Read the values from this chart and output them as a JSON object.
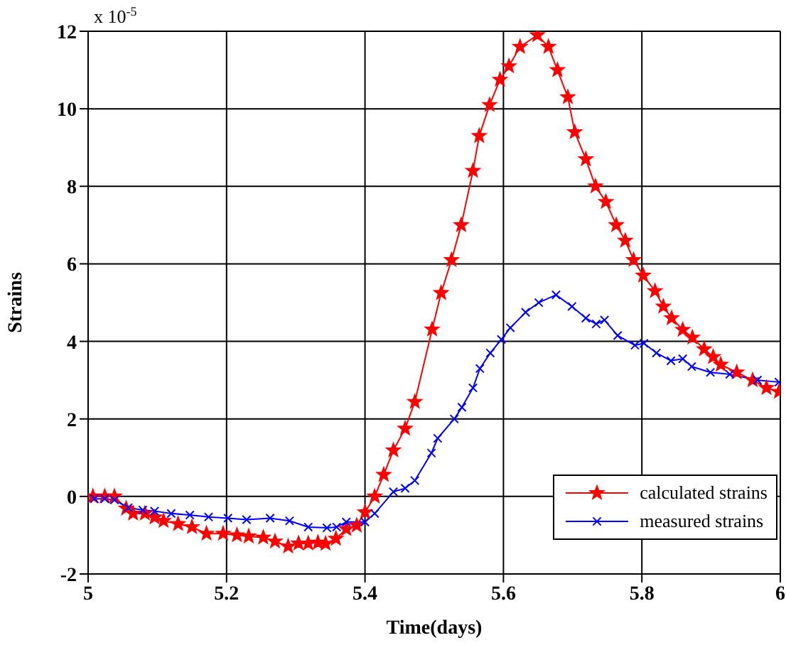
{
  "chart_data": {
    "type": "line",
    "xlabel": "Time(days)",
    "ylabel": "Strains",
    "annotations": [
      "x 10$^{-5}$"
    ],
    "xlim": [
      5,
      6
    ],
    "xticks": [
      5,
      5.2,
      5.4,
      5.6,
      5.8,
      6
    ],
    "ylim": [
      -2,
      12
    ],
    "yticks": [
      -2,
      0,
      2,
      4,
      6,
      8,
      10,
      12
    ],
    "grid": true,
    "legend": "bottom right",
    "line_style": "solid",
    "series": [
      {
        "name": "calculated strains",
        "color": "#ff0000",
        "marker": "star",
        "x": [
          5.007,
          5.024,
          5.038,
          5.055,
          5.065,
          5.082,
          5.096,
          5.109,
          5.13,
          5.15,
          5.171,
          5.195,
          5.215,
          5.232,
          5.253,
          5.27,
          5.289,
          5.304,
          5.318,
          5.332,
          5.343,
          5.358,
          5.373,
          5.388,
          5.4,
          5.414,
          5.427,
          5.441,
          5.458,
          5.472,
          5.497,
          5.51,
          5.525,
          5.539,
          5.556,
          5.565,
          5.58,
          5.595,
          5.608,
          5.624,
          5.649,
          5.665,
          5.678,
          5.693,
          5.703,
          5.719,
          5.733,
          5.748,
          5.763,
          5.776,
          5.788,
          5.802,
          5.819,
          5.831,
          5.843,
          5.859,
          5.873,
          5.89,
          5.903,
          5.914,
          5.937,
          5.96,
          5.98,
          5.998
        ],
        "values": [
          0,
          0,
          0,
          -0.31,
          -0.44,
          -0.44,
          -0.54,
          -0.63,
          -0.71,
          -0.79,
          -0.96,
          -0.96,
          -1.0,
          -1.03,
          -1.06,
          -1.16,
          -1.29,
          -1.21,
          -1.21,
          -1.19,
          -1.22,
          -1.09,
          -0.84,
          -0.75,
          -0.41,
          0,
          0.56,
          1.19,
          1.75,
          2.44,
          4.31,
          5.25,
          6.1,
          7.0,
          8.4,
          9.3,
          10.1,
          10.75,
          11.1,
          11.6,
          11.9,
          11.6,
          11.0,
          10.3,
          9.4,
          8.7,
          8.0,
          7.6,
          7.0,
          6.6,
          6.1,
          5.7,
          5.3,
          4.9,
          4.6,
          4.3,
          4.1,
          3.8,
          3.6,
          3.4,
          3.2,
          3.0,
          2.8,
          2.7
        ]
      },
      {
        "name": "measured strains",
        "color": "#0000ff",
        "marker": "cross",
        "x": [
          5.009,
          5.024,
          5.038,
          5.058,
          5.079,
          5.096,
          5.12,
          5.147,
          5.174,
          5.202,
          5.229,
          5.263,
          5.291,
          5.318,
          5.345,
          5.359,
          5.373,
          5.4,
          5.414,
          5.441,
          5.458,
          5.472,
          5.496,
          5.505,
          5.529,
          5.54,
          5.556,
          5.566,
          5.581,
          5.597,
          5.61,
          5.632,
          5.651,
          5.676,
          5.699,
          5.719,
          5.734,
          5.746,
          5.765,
          5.79,
          5.803,
          5.821,
          5.842,
          5.859,
          5.872,
          5.899,
          5.927,
          5.967,
          5.998
        ],
        "values": [
          -0.06,
          -0.06,
          -0.09,
          -0.29,
          -0.35,
          -0.38,
          -0.44,
          -0.48,
          -0.53,
          -0.56,
          -0.6,
          -0.56,
          -0.63,
          -0.79,
          -0.81,
          -0.79,
          -0.66,
          -0.66,
          -0.44,
          0.12,
          0.21,
          0.41,
          1.12,
          1.5,
          2.0,
          2.3,
          2.8,
          3.3,
          3.7,
          4.05,
          4.35,
          4.75,
          5.0,
          5.2,
          4.9,
          4.6,
          4.45,
          4.55,
          4.15,
          3.9,
          3.95,
          3.7,
          3.5,
          3.55,
          3.35,
          3.2,
          3.15,
          3.0,
          2.95
        ]
      }
    ]
  }
}
